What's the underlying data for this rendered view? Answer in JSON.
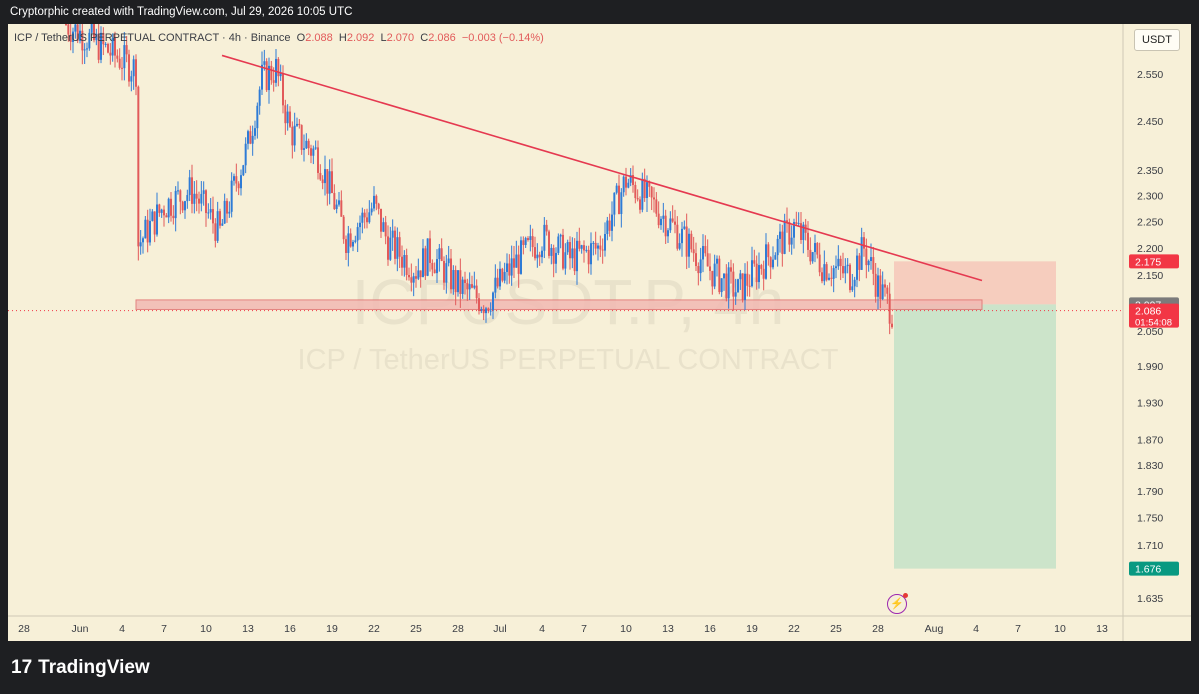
{
  "header": {
    "attribution": "Cryptorphic created with TradingView.com, Jul 29, 2026 10:05 UTC"
  },
  "legend": {
    "symbol": "ICP / TetherUS PERPETUAL CONTRACT · 4h · Binance",
    "o_label": "O",
    "o": "2.088",
    "h_label": "H",
    "h": "2.092",
    "l_label": "L",
    "l": "2.070",
    "c_label": "C",
    "c": "2.086",
    "change": "−0.003 (−0.14%)"
  },
  "currency": "USDT",
  "watermark": {
    "line1": "ICPUSDT.P, 4h",
    "line2": "ICP / TetherUS PERPETUAL CONTRACT"
  },
  "footer": {
    "brand": "TradingView"
  },
  "colors": {
    "up": "#2e7bd6",
    "down": "#e25a5a",
    "trendline": "#e53950",
    "support_fill": "#f2b9b3",
    "stop_zone": "#f5c9bb",
    "target_zone": "#c9e3c9",
    "current_tag": "#f23645",
    "target_tag": "#089981",
    "level_tag": "#7b7b7b"
  },
  "chart_data": {
    "type": "candlestick",
    "title": "",
    "xlabel": "",
    "ylabel": "",
    "y_scale": "log",
    "ylim": [
      1.61,
      2.66
    ],
    "x_ticks": [
      "28",
      "Jun",
      "4",
      "7",
      "10",
      "13",
      "16",
      "19",
      "22",
      "25",
      "28",
      "Jul",
      "4",
      "7",
      "10",
      "13",
      "16",
      "19",
      "22",
      "25",
      "28",
      "Aug",
      "4",
      "7",
      "10",
      "13"
    ],
    "y_ticks": [
      "2.550",
      "2.450",
      "2.350",
      "2.300",
      "2.250",
      "2.200",
      "2.150",
      "2.050",
      "1.990",
      "1.930",
      "1.870",
      "1.830",
      "1.790",
      "1.750",
      "1.710",
      "1.635"
    ],
    "price_tags": [
      {
        "name": "stop",
        "value": "2.175"
      },
      {
        "name": "entry",
        "value": "2.097"
      },
      {
        "name": "last",
        "value": "2.086",
        "countdown": "01:54:08"
      },
      {
        "name": "target",
        "value": "1.676"
      }
    ],
    "close_path": [
      {
        "x": "May 31",
        "y": 2.66
      },
      {
        "x": "Jun 5",
        "y": 2.56
      },
      {
        "x": "Jun 5",
        "y": 2.2
      },
      {
        "x": "Jun 7",
        "y": 2.28
      },
      {
        "x": "Jun 9",
        "y": 2.31
      },
      {
        "x": "Jun 11",
        "y": 2.23
      },
      {
        "x": "Jun 13",
        "y": 2.4
      },
      {
        "x": "Jun 14",
        "y": 2.54
      },
      {
        "x": "Jun 15",
        "y": 2.56
      },
      {
        "x": "Jun 16",
        "y": 2.43
      },
      {
        "x": "Jun 18",
        "y": 2.38
      },
      {
        "x": "Jun 20",
        "y": 2.22
      },
      {
        "x": "Jun 22",
        "y": 2.28
      },
      {
        "x": "Jun 23",
        "y": 2.21
      },
      {
        "x": "Jun 25",
        "y": 2.16
      },
      {
        "x": "Jun 26",
        "y": 2.19
      },
      {
        "x": "Jun 28",
        "y": 2.13
      },
      {
        "x": "Jun 30",
        "y": 2.1
      },
      {
        "x": "Jul 2",
        "y": 2.17
      },
      {
        "x": "Jul 4",
        "y": 2.22
      },
      {
        "x": "Jul 6",
        "y": 2.18
      },
      {
        "x": "Jul 8",
        "y": 2.2
      },
      {
        "x": "Jul 10",
        "y": 2.33
      },
      {
        "x": "Jul 12",
        "y": 2.28
      },
      {
        "x": "Jul 14",
        "y": 2.22
      },
      {
        "x": "Jul 16",
        "y": 2.16
      },
      {
        "x": "Jul 18",
        "y": 2.12
      },
      {
        "x": "Jul 20",
        "y": 2.18
      },
      {
        "x": "Jul 22",
        "y": 2.24
      },
      {
        "x": "Jul 24",
        "y": 2.17
      },
      {
        "x": "Jul 26",
        "y": 2.15
      },
      {
        "x": "Jul 27",
        "y": 2.2
      },
      {
        "x": "Jul 28",
        "y": 2.13
      },
      {
        "x": "Jul 29",
        "y": 2.086
      }
    ],
    "trendline": [
      {
        "x": "Jun 14",
        "y": 2.59
      },
      {
        "x": "Aug 5",
        "y": 2.14
      }
    ],
    "support_zone": {
      "from": "Jun 5",
      "to": "Aug 5",
      "low": 2.088,
      "high": 2.105
    },
    "position": {
      "from": "Jul 29",
      "to": "Aug 9",
      "entry": 2.097,
      "stop": 2.175,
      "target": 1.676
    },
    "grid": false,
    "legend": "top-left"
  }
}
